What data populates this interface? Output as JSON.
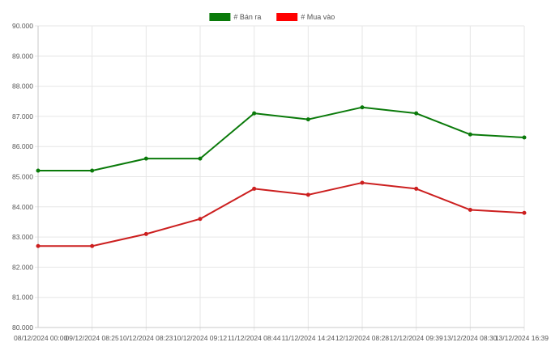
{
  "chart_data": {
    "type": "line",
    "categories": [
      "08/12/2024 00:00",
      "09/12/2024 08:25",
      "10/12/2024 08:23",
      "10/12/2024 09:12",
      "11/12/2024 08:44",
      "11/12/2024 14:24",
      "12/12/2024 08:28",
      "12/12/2024 09:39",
      "13/12/2024 08:30",
      "13/12/2024 16:39"
    ],
    "series": [
      {
        "name": "# Bán ra",
        "color": "#0a7a0a",
        "values": [
          85200,
          85200,
          85600,
          85600,
          87100,
          86900,
          87300,
          87100,
          86400,
          86300
        ]
      },
      {
        "name": "# Mua vào",
        "color": "#cc1f1f",
        "values": [
          82700,
          82700,
          83100,
          83600,
          84600,
          84400,
          84800,
          84600,
          83900,
          83800
        ]
      }
    ],
    "legend_colors": [
      "#0a7a0a",
      "#ff0000"
    ],
    "ylim": [
      80000,
      90000
    ],
    "yticks": [
      "80.000",
      "81.000",
      "82.000",
      "83.000",
      "84.000",
      "85.000",
      "86.000",
      "87.000",
      "88.000",
      "89.000",
      "90.000"
    ],
    "grid": true,
    "legend_position": "top-center",
    "title": "",
    "xlabel": "",
    "ylabel": ""
  }
}
